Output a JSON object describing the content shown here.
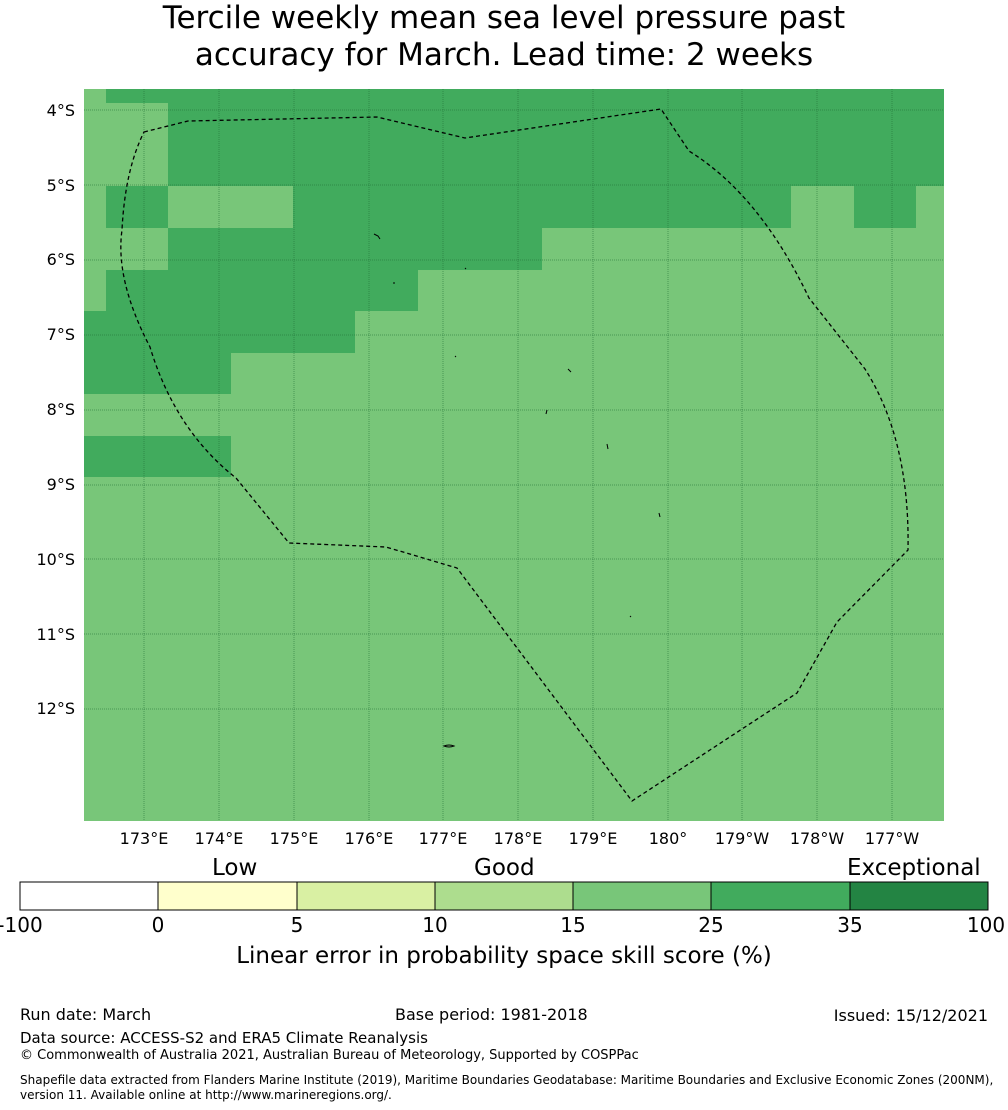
{
  "title_line1": "Tercile weekly mean sea level pressure past",
  "title_line2": "accuracy for March. Lead time: 2 weeks",
  "map": {
    "lat_labels": [
      "4°S",
      "5°S",
      "6°S",
      "7°S",
      "8°S",
      "9°S",
      "10°S",
      "11°S",
      "12°S"
    ],
    "lon_labels": [
      "173°E",
      "174°E",
      "175°E",
      "176°E",
      "177°E",
      "178°E",
      "179°E",
      "180°",
      "179°W",
      "178°W",
      "177°W"
    ],
    "colors": {
      "band_15_25": "#78c679",
      "band_25_35": "#41ab5d",
      "boundary": "#000000"
    }
  },
  "colorbar": {
    "categories": [
      "Low",
      "Good",
      "Exceptional"
    ],
    "ticks": [
      "-100",
      "0",
      "5",
      "10",
      "15",
      "25",
      "35",
      "100"
    ],
    "colors": [
      "#ffffff",
      "#ffffcc",
      "#d9f0a3",
      "#addd8e",
      "#78c679",
      "#41ab5d",
      "#238443"
    ],
    "label": "Linear error in probability space skill score (%)"
  },
  "footer": {
    "run_date": "Run date: March",
    "base_period": "Base period: 1981-2018",
    "issued": "Issued: 15/12/2021",
    "data_source": "Data source: ACCESS-S2 and ERA5 Climate Reanalysis",
    "copyright": "© Commonwealth of Australia 2021, Australian Bureau of Meteorology, Supported by COSPPac",
    "shapefile_1": "Shapefile data extracted from Flanders Marine Institute (2019), Maritime Boundaries Geodatabase: Maritime Boundaries and Exclusive Economic Zones (200NM),",
    "shapefile_2": "version 11. Available online at http://www.marineregions.org/."
  }
}
